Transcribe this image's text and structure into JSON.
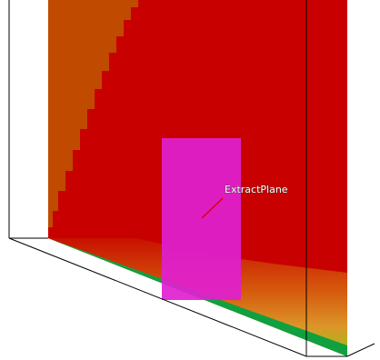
{
  "label": {
    "text": "ExtractPlane"
  }
}
